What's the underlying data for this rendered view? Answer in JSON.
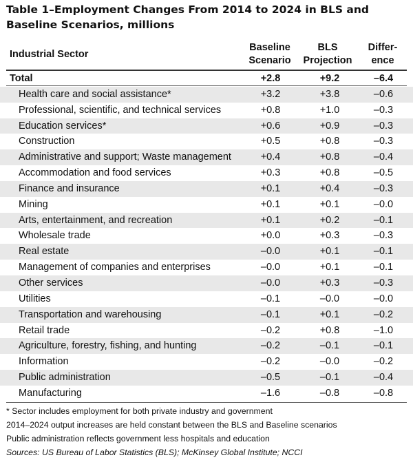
{
  "title": "Table 1–Employment Changes From 2014 to 2024 in BLS and Baseline Scenarios, millions",
  "headers": {
    "sector": "Industrial Sector",
    "baseline_line1": "Baseline",
    "baseline_line2": "Scenario",
    "bls_line1": "BLS",
    "bls_line2": "Projection",
    "diff_line1": "Differ-",
    "diff_line2": "ence"
  },
  "total": {
    "name": "Total",
    "baseline": "+2.8",
    "bls": "+9.2",
    "diff": "–6.4"
  },
  "rows": [
    {
      "name": "Health care and social assistance*",
      "baseline": "+3.2",
      "bls": "+3.8",
      "diff": "–0.6"
    },
    {
      "name": "Professional, scientific, and technical services",
      "baseline": "+0.8",
      "bls": "+1.0",
      "diff": "–0.3"
    },
    {
      "name": "Education services*",
      "baseline": "+0.6",
      "bls": "+0.9",
      "diff": "–0.3"
    },
    {
      "name": "Construction",
      "baseline": "+0.5",
      "bls": "+0.8",
      "diff": "–0.3"
    },
    {
      "name": "Administrative and support; Waste management",
      "baseline": "+0.4",
      "bls": "+0.8",
      "diff": "–0.4"
    },
    {
      "name": "Accommodation and food services",
      "baseline": "+0.3",
      "bls": "+0.8",
      "diff": "–0.5"
    },
    {
      "name": "Finance and insurance",
      "baseline": "+0.1",
      "bls": "+0.4",
      "diff": "–0.3"
    },
    {
      "name": "Mining",
      "baseline": "+0.1",
      "bls": "+0.1",
      "diff": "–0.0"
    },
    {
      "name": "Arts, entertainment, and recreation",
      "baseline": "+0.1",
      "bls": "+0.2",
      "diff": "–0.1"
    },
    {
      "name": "Wholesale trade",
      "baseline": "+0.0",
      "bls": "+0.3",
      "diff": "–0.3"
    },
    {
      "name": "Real estate",
      "baseline": "–0.0",
      "bls": "+0.1",
      "diff": "–0.1"
    },
    {
      "name": "Management of companies and enterprises",
      "baseline": "–0.0",
      "bls": "+0.1",
      "diff": "–0.1"
    },
    {
      "name": "Other services",
      "baseline": "–0.0",
      "bls": "+0.3",
      "diff": "–0.3"
    },
    {
      "name": "Utilities",
      "baseline": "–0.1",
      "bls": "–0.0",
      "diff": "–0.0"
    },
    {
      "name": "Transportation and warehousing",
      "baseline": "–0.1",
      "bls": "+0.1",
      "diff": "–0.2"
    },
    {
      "name": "Retail trade",
      "baseline": "–0.2",
      "bls": "+0.8",
      "diff": "–1.0"
    },
    {
      "name": "Agriculture, forestry, fishing, and hunting",
      "baseline": "–0.2",
      "bls": "–0.1",
      "diff": "–0.1"
    },
    {
      "name": "Information",
      "baseline": "–0.2",
      "bls": "–0.0",
      "diff": "–0.2"
    },
    {
      "name": "Public administration",
      "baseline": "–0.5",
      "bls": "–0.1",
      "diff": "–0.4"
    },
    {
      "name": "Manufacturing",
      "baseline": "–1.6",
      "bls": "–0.8",
      "diff": "–0.8"
    }
  ],
  "notes": [
    "* Sector includes employment for both private industry and government",
    "2014–2024 output increases are held constant between the BLS and Baseline scenarios",
    "Public administration reflects government less hospitals and education"
  ],
  "source": "Sources: US Bureau of Labor Statistics (BLS); McKinsey Global Institute; NCCI",
  "colors": {
    "row_shade": "#e8e8e8",
    "text": "#111111",
    "rule": "#333333"
  }
}
